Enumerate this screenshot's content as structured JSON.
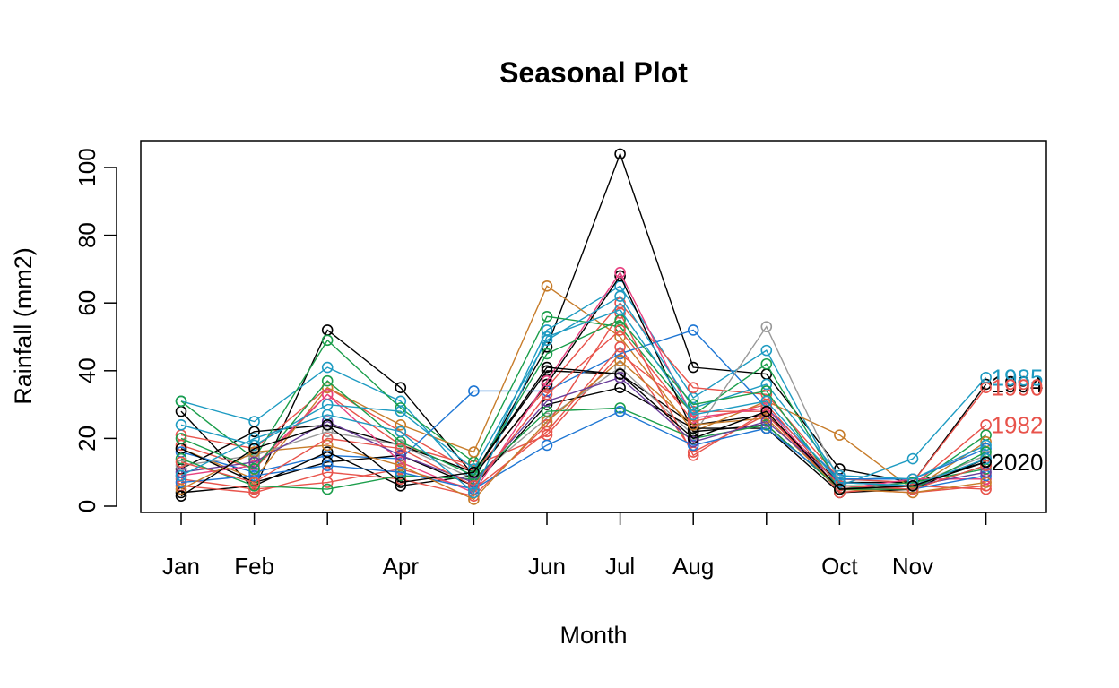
{
  "chart_data": {
    "type": "line",
    "title": "Seasonal Plot",
    "xlabel": "Month",
    "ylabel": "Rainfall (mm2)",
    "x": [
      1,
      2,
      3,
      4,
      5,
      6,
      7,
      8,
      9,
      10,
      11,
      12
    ],
    "x_tick_labels": [
      "Jan",
      "Feb",
      "",
      "Apr",
      "",
      "Jun",
      "Jul",
      "Aug",
      "",
      "Oct",
      "Nov",
      ""
    ],
    "ylim": [
      0,
      105
    ],
    "y_ticks": [
      0,
      20,
      40,
      60,
      80,
      100
    ],
    "grid": false,
    "markers": "open-circle",
    "series": [
      {
        "name": "1994",
        "color": "#000000",
        "values": [
          28,
          5,
          52,
          35,
          9,
          47,
          104,
          41,
          39,
          11,
          7,
          36
        ]
      },
      {
        "name": "1985",
        "color": "#1e9bc2",
        "values": [
          31,
          25,
          41,
          31,
          7,
          52,
          65,
          32,
          46,
          6,
          14,
          38
        ]
      },
      {
        "name": "1990",
        "color": "#e8534b",
        "values": [
          21,
          17,
          35,
          22,
          10,
          35,
          60,
          35,
          33,
          8,
          7,
          35
        ]
      },
      {
        "name": "1982",
        "color": "#e8534b",
        "values": [
          18,
          11,
          33,
          18,
          12,
          21,
          45,
          28,
          28,
          5,
          6,
          24
        ]
      },
      {
        "name": "2020",
        "color": "#000000",
        "values": [
          11,
          22,
          24,
          18,
          10,
          40,
          39,
          24,
          27,
          7,
          7,
          13
        ]
      },
      {
        "name": "",
        "color": "#1b9e4b",
        "values": [
          31,
          14,
          49,
          29,
          13,
          56,
          53,
          27,
          42,
          6,
          6,
          21
        ]
      },
      {
        "name": "",
        "color": "#c77c2a",
        "values": [
          17,
          8,
          35,
          24,
          16,
          65,
          50,
          22,
          31,
          21,
          5,
          19
        ]
      },
      {
        "name": "",
        "color": "#1f77d4",
        "values": [
          16,
          10,
          15,
          14,
          34,
          34,
          45,
          52,
          29,
          8,
          8,
          17
        ]
      },
      {
        "name": "",
        "color": "#999999",
        "values": [
          12,
          15,
          22,
          18,
          8,
          26,
          41,
          21,
          53,
          7,
          6,
          15
        ]
      },
      {
        "name": "",
        "color": "#000000",
        "values": [
          4,
          6,
          16,
          6,
          9,
          36,
          68,
          22,
          24,
          5,
          5,
          12
        ]
      },
      {
        "name": "",
        "color": "#000000",
        "values": [
          17,
          7,
          13,
          15,
          6,
          30,
          35,
          23,
          23,
          4,
          5,
          14
        ]
      },
      {
        "name": "",
        "color": "#e8534b",
        "values": [
          8,
          5,
          7,
          11,
          5,
          22,
          47,
          16,
          27,
          5,
          4,
          6
        ]
      },
      {
        "name": "",
        "color": "#e8534b",
        "values": [
          6,
          4,
          10,
          8,
          3,
          24,
          57,
          15,
          28,
          4,
          6,
          5
        ]
      },
      {
        "name": "",
        "color": "#e84080",
        "values": [
          9,
          12,
          33,
          13,
          4,
          37,
          69,
          26,
          29,
          5,
          8,
          8
        ]
      },
      {
        "name": "",
        "color": "#1b9e4b",
        "values": [
          14,
          6,
          5,
          9,
          8,
          28,
          29,
          20,
          24,
          5,
          7,
          11
        ]
      },
      {
        "name": "",
        "color": "#1e9bc2",
        "values": [
          24,
          18,
          30,
          28,
          11,
          49,
          62,
          29,
          36,
          9,
          8,
          18
        ]
      },
      {
        "name": "",
        "color": "#1f77d4",
        "values": [
          7,
          9,
          12,
          10,
          5,
          18,
          28,
          18,
          23,
          6,
          5,
          9
        ]
      },
      {
        "name": "",
        "color": "#c77c2a",
        "values": [
          5,
          16,
          18,
          12,
          2,
          25,
          43,
          24,
          26,
          5,
          4,
          7
        ]
      },
      {
        "name": "",
        "color": "#6a3d9a",
        "values": [
          10,
          13,
          25,
          15,
          7,
          31,
          38,
          19,
          25,
          7,
          6,
          10
        ]
      },
      {
        "name": "",
        "color": "#1b9e4b",
        "values": [
          20,
          11,
          37,
          19,
          9,
          45,
          55,
          30,
          34,
          5,
          5,
          16
        ]
      },
      {
        "name": "",
        "color": "#e8534b",
        "values": [
          13,
          7,
          20,
          17,
          6,
          33,
          52,
          25,
          30,
          6,
          5,
          12
        ]
      },
      {
        "name": "",
        "color": "#1e9bc2",
        "values": [
          9,
          20,
          27,
          22,
          4,
          50,
          58,
          27,
          31,
          7,
          6,
          14
        ]
      },
      {
        "name": "",
        "color": "#000000",
        "values": [
          3,
          17,
          24,
          7,
          10,
          41,
          39,
          20,
          28,
          5,
          6,
          13
        ]
      }
    ]
  }
}
